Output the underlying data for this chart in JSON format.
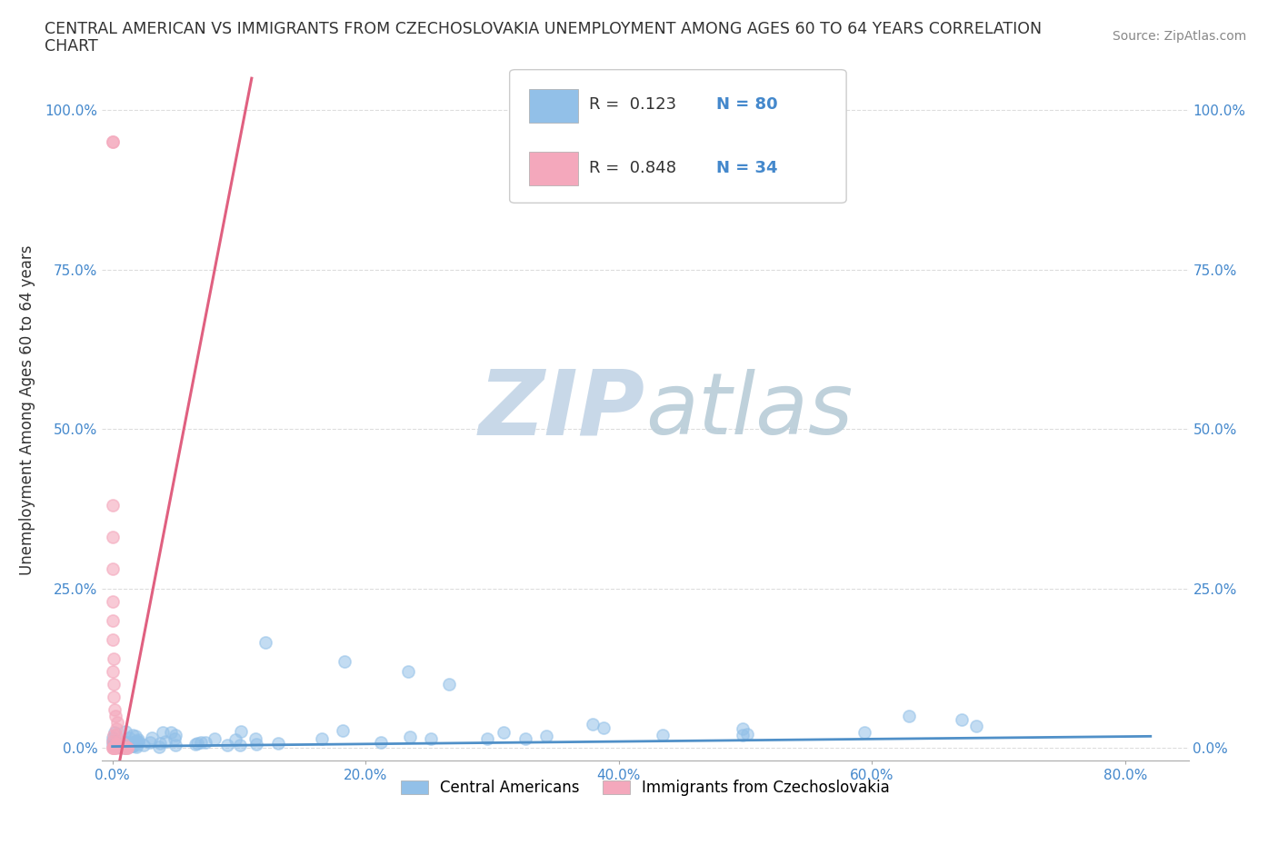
{
  "title_line1": "CENTRAL AMERICAN VS IMMIGRANTS FROM CZECHOSLOVAKIA UNEMPLOYMENT AMONG AGES 60 TO 64 YEARS CORRELATION",
  "title_line2": "CHART",
  "source": "Source: ZipAtlas.com",
  "ylabel": "Unemployment Among Ages 60 to 64 years",
  "xlim": [
    -0.008,
    0.85
  ],
  "ylim": [
    -0.02,
    1.08
  ],
  "xticks": [
    0.0,
    0.2,
    0.4,
    0.6,
    0.8
  ],
  "yticks": [
    0.0,
    0.25,
    0.5,
    0.75,
    1.0
  ],
  "xtick_labels": [
    "0.0%",
    "20.0%",
    "40.0%",
    "60.0%",
    "80.0%"
  ],
  "ytick_labels": [
    "0.0%",
    "25.0%",
    "50.0%",
    "75.0%",
    "100.0%"
  ],
  "series1_color": "#92c0e8",
  "series2_color": "#f4a8bc",
  "series1_line_color": "#5090c8",
  "series2_line_color": "#e06080",
  "series1_label": "Central Americans",
  "series2_label": "Immigrants from Czechoslovakia",
  "series1_R": 0.123,
  "series1_N": 80,
  "series2_R": 0.848,
  "series2_N": 34,
  "tick_color": "#4488cc",
  "watermark_zip_color": "#c8d8e8",
  "watermark_atlas_color": "#b8ccd8",
  "background_color": "#ffffff",
  "grid_color": "#dddddd",
  "legend_edge_color": "#cccccc",
  "text_color": "#333333",
  "source_color": "#888888"
}
